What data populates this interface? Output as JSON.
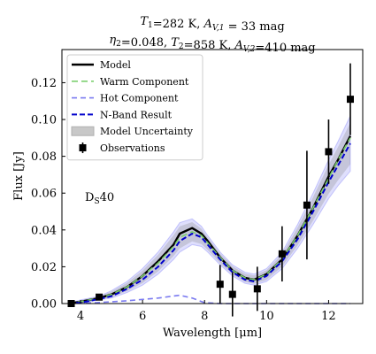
{
  "chart_data": {
    "type": "line",
    "title_line1": "T₁=282 K, A_V,1 = 33 mag",
    "title_line2": "η₂=0.048, T₂=858 K, A_V,2=410 mag",
    "xlabel": "Wavelength [μm]",
    "ylabel": "Flux [Jy]",
    "annotation": "D_S40",
    "xlim": [
      3.4,
      13.1
    ],
    "ylim": [
      0.0,
      0.138
    ],
    "xticks": [
      4,
      6,
      8,
      10,
      12
    ],
    "yticks": [
      0.0,
      0.02,
      0.04,
      0.06,
      0.08,
      0.1,
      0.12
    ],
    "ytick_labels": [
      "0.00",
      "0.02",
      "0.04",
      "0.06",
      "0.08",
      "0.10",
      "0.12"
    ],
    "grid": false,
    "legend_placement": "top-left",
    "legend": [
      {
        "label": "Model",
        "style": "model"
      },
      {
        "label": "Warm Component",
        "style": "warm"
      },
      {
        "label": "Hot Component",
        "style": "hot"
      },
      {
        "label": "N-Band Result",
        "style": "nband"
      },
      {
        "label": "Model Uncertainty",
        "style": "unc"
      },
      {
        "label": "Observations",
        "style": "obs"
      }
    ],
    "colors": {
      "model": "#000000",
      "warm": "#7ccf6f",
      "hot": "#7a7af0",
      "nband": "#0000cc",
      "band_grey": "#c8c8c8",
      "band_blue": "#6f6ff5"
    },
    "series": [
      {
        "name": "Model",
        "x": [
          3.6,
          4.0,
          4.6,
          5.0,
          5.5,
          6.0,
          6.5,
          7.0,
          7.2,
          7.6,
          7.9,
          8.1,
          8.5,
          8.9,
          9.3,
          9.6,
          10.0,
          10.5,
          11.0,
          11.5,
          12.0,
          12.3,
          12.7
        ],
        "y": [
          0.0,
          0.001,
          0.003,
          0.005,
          0.009,
          0.015,
          0.023,
          0.032,
          0.038,
          0.041,
          0.038,
          0.034,
          0.025,
          0.018,
          0.014,
          0.013,
          0.016,
          0.024,
          0.037,
          0.052,
          0.069,
          0.078,
          0.091
        ]
      },
      {
        "name": "Warm Component",
        "x": [
          3.6,
          4.0,
          4.6,
          5.0,
          5.5,
          6.0,
          6.5,
          7.0,
          7.2,
          7.6,
          7.9,
          8.1,
          8.5,
          8.9,
          9.3,
          9.6,
          10.0,
          10.5,
          11.0,
          11.5,
          12.0,
          12.3,
          12.7
        ],
        "y": [
          0.0,
          0.001,
          0.003,
          0.005,
          0.009,
          0.015,
          0.022,
          0.031,
          0.036,
          0.039,
          0.037,
          0.033,
          0.025,
          0.018,
          0.014,
          0.013,
          0.016,
          0.024,
          0.037,
          0.052,
          0.068,
          0.078,
          0.09
        ]
      },
      {
        "name": "Hot Component",
        "x": [
          3.6,
          4.5,
          5.5,
          6.5,
          7.2,
          7.6,
          8.0,
          8.5,
          9.0,
          10.0,
          11.0,
          12.0,
          12.7
        ],
        "y": [
          0.0,
          0.0005,
          0.0015,
          0.003,
          0.0045,
          0.003,
          0.0005,
          0.0,
          0.0,
          0.0,
          0.0,
          0.0,
          0.0
        ]
      },
      {
        "name": "N-Band Result",
        "x": [
          3.6,
          4.0,
          4.6,
          5.0,
          5.5,
          6.0,
          6.5,
          7.0,
          7.2,
          7.6,
          7.9,
          8.1,
          8.5,
          8.9,
          9.3,
          9.6,
          10.0,
          10.5,
          11.0,
          11.5,
          12.0,
          12.3,
          12.7
        ],
        "y": [
          0.0,
          0.0005,
          0.0025,
          0.004,
          0.008,
          0.013,
          0.02,
          0.029,
          0.034,
          0.038,
          0.036,
          0.032,
          0.024,
          0.017,
          0.013,
          0.012,
          0.015,
          0.023,
          0.035,
          0.05,
          0.066,
          0.075,
          0.087
        ]
      },
      {
        "name": "Model Uncertainty",
        "x": [
          3.6,
          4.0,
          4.6,
          5.0,
          5.5,
          6.0,
          6.5,
          7.0,
          7.2,
          7.6,
          7.9,
          8.1,
          8.5,
          8.9,
          9.3,
          9.6,
          10.0,
          10.5,
          11.0,
          11.5,
          12.0,
          12.3,
          12.7
        ],
        "y_low": [
          0.0,
          0.0,
          0.002,
          0.003,
          0.006,
          0.01,
          0.016,
          0.024,
          0.028,
          0.032,
          0.031,
          0.028,
          0.021,
          0.015,
          0.011,
          0.01,
          0.012,
          0.019,
          0.03,
          0.043,
          0.057,
          0.064,
          0.072
        ],
        "y_high": [
          0.0,
          0.002,
          0.004,
          0.007,
          0.012,
          0.019,
          0.028,
          0.039,
          0.044,
          0.046,
          0.042,
          0.037,
          0.028,
          0.021,
          0.017,
          0.016,
          0.019,
          0.028,
          0.043,
          0.06,
          0.078,
          0.088,
          0.102
        ]
      },
      {
        "name": "Observations",
        "x": [
          3.7,
          4.6,
          8.5,
          8.9,
          9.7,
          10.5,
          11.3,
          12.0,
          12.7
        ],
        "y": [
          0.0,
          0.0035,
          0.0105,
          0.005,
          0.008,
          0.027,
          0.0535,
          0.0825,
          0.111
        ],
        "err": [
          0.0,
          0.0,
          0.0105,
          0.012,
          0.012,
          0.015,
          0.0295,
          0.0175,
          0.0195
        ]
      }
    ]
  }
}
